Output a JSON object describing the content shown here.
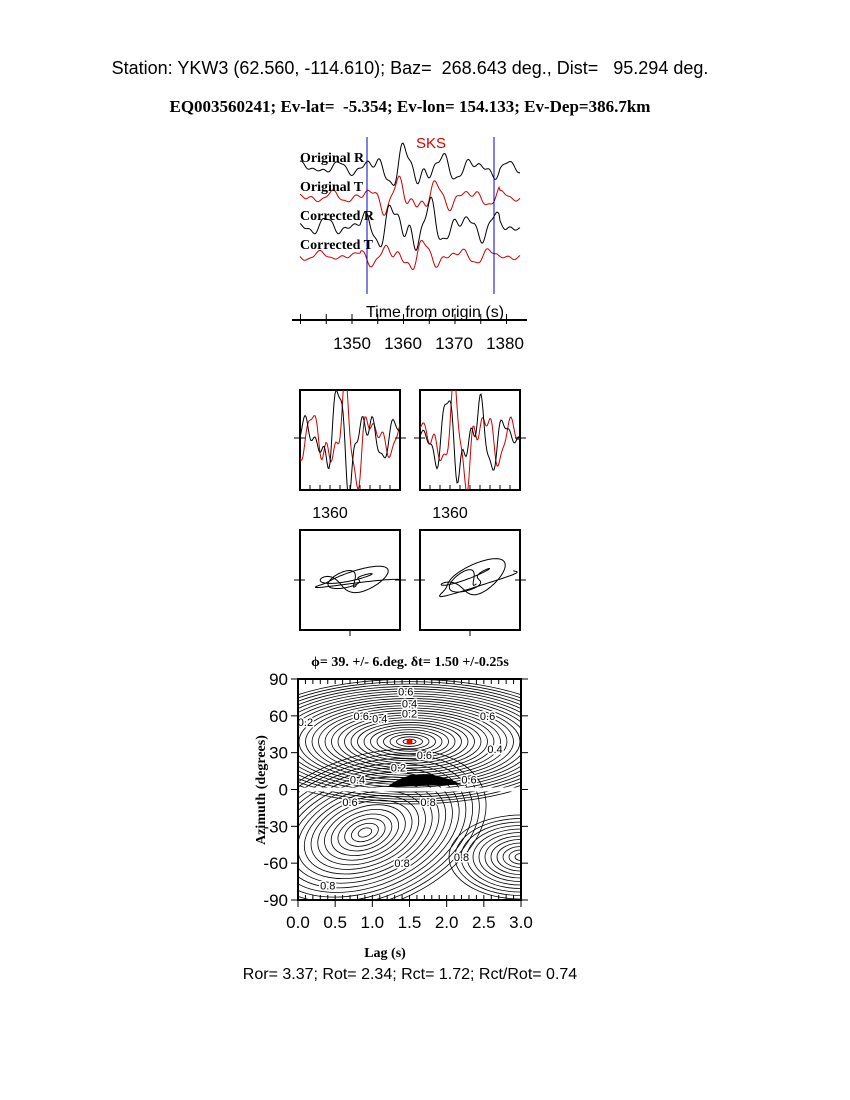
{
  "header": {
    "line1": "Station: YKW3 (62.560, -114.610); Baz=  268.643 deg., Dist=   95.294 deg.",
    "line2": "EQ003560241; Ev-lat=  -5.354; Ev-lon= 154.133; Ev-Dep=386.7km"
  },
  "footer": "Ror= 3.37; Rot= 2.34; Rct= 1.72; Rct/Rot= 0.74",
  "chart_data": [
    {
      "type": "line",
      "phase_label": "SKS",
      "traces": [
        "Original R",
        "Original T",
        "Corrected R",
        "Corrected T"
      ],
      "xlabel": "Time from origin (s)",
      "xticks": [
        "1350",
        "1360",
        "1370",
        "1380"
      ],
      "window_s": [
        1353,
        1378
      ],
      "colors": {
        "radial": "#000000",
        "transverse": "#cc0000",
        "window": "#0000cc"
      }
    },
    {
      "type": "line",
      "panels": [
        "original-waveforms",
        "corrected-waveforms"
      ],
      "xticks": [
        "1360",
        "1360"
      ]
    },
    {
      "type": "line",
      "panels": [
        "original-particle-motion",
        "corrected-particle-motion"
      ]
    },
    {
      "type": "heatmap",
      "title": "ϕ= 39. +/- 6.deg. δt= 1.50 +/-0.25s",
      "xlabel": "Lag (s)",
      "ylabel": "Azimuth (degrees)",
      "xlim": [
        0,
        3
      ],
      "ylim": [
        -90,
        90
      ],
      "xticks": [
        "0.0",
        "0.5",
        "1.0",
        "1.5",
        "2.0",
        "2.5",
        "3.0"
      ],
      "yticks": [
        "90",
        "60",
        "30",
        "0",
        "-30",
        "-60",
        "-90"
      ],
      "contour_labels": [
        "0.6",
        "0.4",
        "0.2",
        "0.6",
        "0.4",
        "0.2",
        "0.6",
        "0.4",
        "0.6",
        "0.2",
        "0.4",
        "0.6",
        "0.6",
        "0.8",
        "0.8",
        "0.8",
        "0.8",
        "0.8"
      ],
      "best": {
        "lag": 1.5,
        "azimuth": 39
      },
      "marker_color": "#ee0000"
    }
  ]
}
